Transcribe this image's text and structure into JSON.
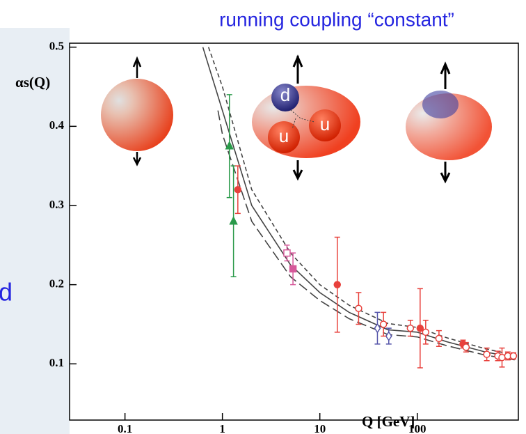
{
  "chart_data": {
    "type": "scatter",
    "title": "running coupling “constant”",
    "xlabel": "Q [GeV]",
    "ylabel": "αs(Q)",
    "log_x": true,
    "xlim": [
      0.027,
      1090
    ],
    "ylim": [
      0.029,
      0.505
    ],
    "xticks": [
      0.1,
      1,
      10,
      100
    ],
    "yticks": [
      0.1,
      0.2,
      0.3,
      0.4,
      0.5
    ],
    "annotations": [
      "d",
      "u",
      "u",
      "d"
    ],
    "series": [
      {
        "style": "solid",
        "color": "#444444",
        "x": [
          0.63,
          1,
          2,
          5,
          10,
          20,
          50,
          100,
          200,
          500,
          1000
        ],
        "values": [
          0.5,
          0.42,
          0.3,
          0.225,
          0.19,
          0.165,
          0.143,
          0.14,
          0.128,
          0.115,
          0.108
        ]
      },
      {
        "style": "dashed",
        "color": "#444444",
        "x": [
          0.72,
          1,
          2,
          5,
          10,
          20,
          50,
          100,
          200,
          500,
          1000
        ],
        "values": [
          0.5,
          0.45,
          0.32,
          0.24,
          0.2,
          0.174,
          0.151,
          0.146,
          0.133,
          0.119,
          0.111
        ]
      },
      {
        "style": "longdash",
        "color": "#444444",
        "x": [
          0.9,
          1,
          2,
          5,
          10,
          20,
          50,
          100,
          200,
          500,
          1000
        ],
        "values": [
          0.42,
          0.39,
          0.28,
          0.21,
          0.18,
          0.157,
          0.137,
          0.134,
          0.123,
          0.111,
          0.105
        ]
      },
      {
        "marker": "triangle",
        "filled": true,
        "color": "#2a9a4a",
        "x": [
          1.18,
          1.3
        ],
        "values": [
          0.375,
          0.28
        ],
        "errors": [
          0.065,
          0.07
        ]
      },
      {
        "marker": "circle",
        "filled": true,
        "color": "#e8413c",
        "x": [
          1.44,
          15.1,
          107,
          295
        ],
        "values": [
          0.32,
          0.2,
          0.145,
          0.125
        ],
        "errors": [
          0.03,
          0.06,
          0.05,
          0.005
        ]
      },
      {
        "marker": "square",
        "filled": false,
        "color": "#d6599a",
        "x": [
          4.6
        ],
        "values": [
          0.24
        ],
        "errors": [
          0.01
        ]
      },
      {
        "marker": "square",
        "filled": true,
        "color": "#d6599a",
        "x": [
          5.3
        ],
        "values": [
          0.22
        ],
        "errors": [
          0.02
        ]
      },
      {
        "marker": "diamond",
        "filled": false,
        "color": "#5555aa",
        "x": [
          39,
          51
        ],
        "values": [
          0.145,
          0.135
        ],
        "errors": [
          0.02,
          0.01
        ]
      },
      {
        "marker": "circle",
        "filled": false,
        "color": "#e8413c",
        "x": [
          25,
          45,
          85,
          122,
          167,
          317,
          517,
          672,
          741,
          850,
          970
        ],
        "values": [
          0.17,
          0.15,
          0.145,
          0.14,
          0.132,
          0.121,
          0.112,
          0.11,
          0.108,
          0.11,
          0.11
        ],
        "errors": [
          0.02,
          0.015,
          0.01,
          0.015,
          0.01,
          0.006,
          0.008,
          0.006,
          0.012,
          0.005,
          0.004
        ]
      }
    ]
  }
}
